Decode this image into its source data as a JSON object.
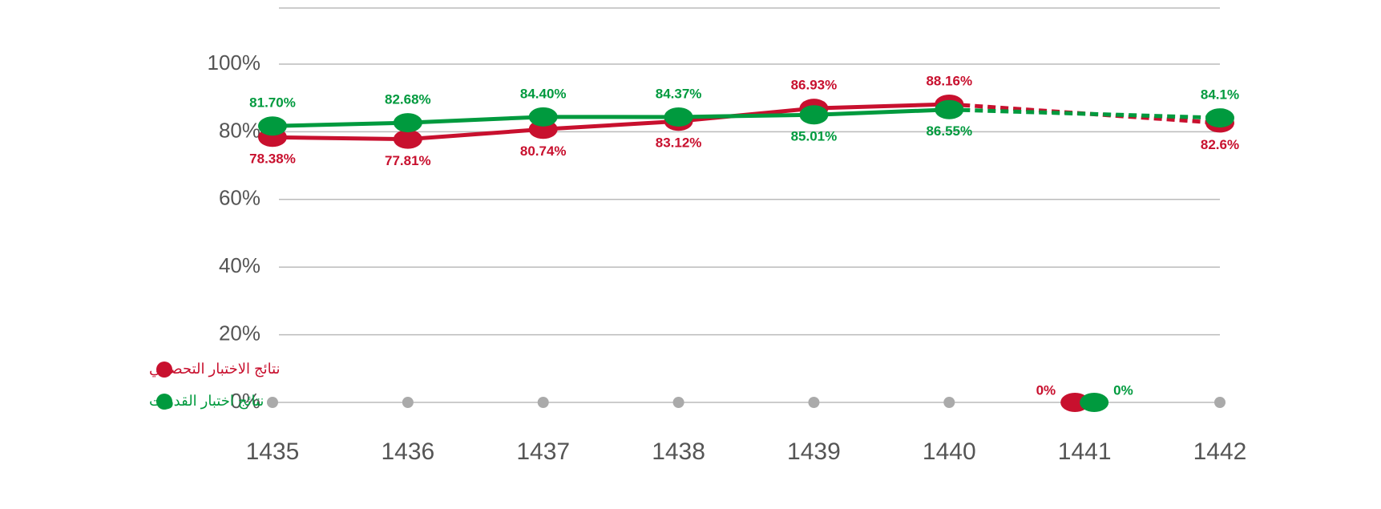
{
  "chart_data": {
    "type": "line",
    "categories": [
      "1435",
      "1436",
      "1437",
      "1438",
      "1439",
      "1440",
      "1441",
      "1442"
    ],
    "series": [
      {
        "name": "نتائج الاختبار التحصيلي",
        "color": "#c8102e",
        "values": [
          78.38,
          77.81,
          80.74,
          83.12,
          86.93,
          88.16,
          0,
          82.6
        ],
        "value_labels": [
          "78.38%",
          "77.81%",
          "80.74%",
          "83.12%",
          "86.93%",
          "88.16%",
          "0%",
          "82.6%"
        ]
      },
      {
        "name": "نتائج اختبار القدرات",
        "color": "#009a3e",
        "values": [
          81.7,
          82.68,
          84.4,
          84.37,
          85.01,
          86.55,
          0,
          84.1
        ],
        "value_labels": [
          "81.70%",
          "82.68%",
          "84.40%",
          "84.37%",
          "85.01%",
          "86.55%",
          "0%",
          "84.1%"
        ]
      }
    ],
    "ylim": [
      0,
      100
    ],
    "yticks": [
      {
        "value": 0,
        "label": "0%"
      },
      {
        "value": 20,
        "label": "20%"
      },
      {
        "value": 40,
        "label": "40%"
      },
      {
        "value": 60,
        "label": "60%"
      },
      {
        "value": 80,
        "label": "80%"
      },
      {
        "value": 100,
        "label": "100%"
      }
    ],
    "grid": true,
    "legend": "bottom-left"
  }
}
